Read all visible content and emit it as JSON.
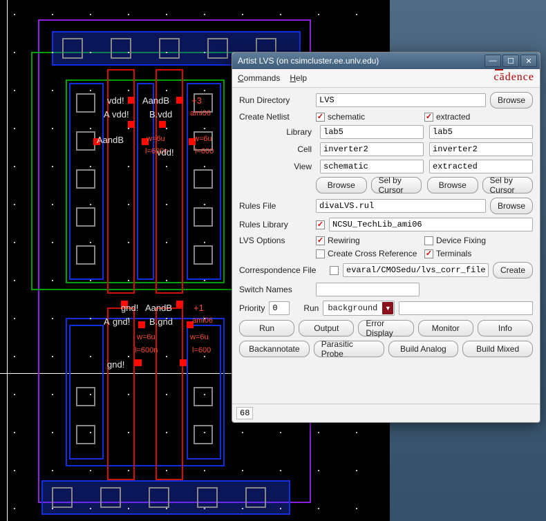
{
  "window": {
    "title": "Artist LVS (on csimcluster.ee.unlv.edu)",
    "menus": {
      "commands": "Commands",
      "help": "Help"
    },
    "brand": "cādence"
  },
  "form": {
    "run_directory_label": "Run Directory",
    "run_directory": "LVS",
    "browse": "Browse",
    "create_netlist_label": "Create Netlist",
    "schematic_chk_label": "schematic",
    "extracted_chk_label": "extracted",
    "schematic_checked": true,
    "extracted_checked": true,
    "library_label": "Library",
    "cell_label": "Cell",
    "view_label": "View",
    "left": {
      "library": "lab5",
      "cell": "inverter2",
      "view": "schematic"
    },
    "right": {
      "library": "lab5",
      "cell": "inverter2",
      "view": "extracted"
    },
    "sel_by_cursor": "Sel by Cursor",
    "rules_file_label": "Rules File",
    "rules_file": "divaLVS.rul",
    "rules_library_label": "Rules Library",
    "rules_library_checked": true,
    "rules_library": "NCSU_TechLib_ami06",
    "lvs_options_label": "LVS Options",
    "rewiring_label": "Rewiring",
    "rewiring_checked": true,
    "device_fixing_label": "Device Fixing",
    "device_fixing_checked": false,
    "create_xref_label": "Create Cross Reference",
    "create_xref_checked": false,
    "terminals_label": "Terminals",
    "terminals_checked": true,
    "corr_file_label": "Correspondence File",
    "corr_file_checked": false,
    "corr_file": "evaral/CMOSedu/lvs_corr_file",
    "create_btn": "Create",
    "switch_names_label": "Switch Names",
    "switch_names": "",
    "priority_label": "Priority",
    "priority": "0",
    "run_label": "Run",
    "run_mode": "background",
    "buttons1": {
      "run": "Run",
      "output": "Output",
      "error": "Error Display",
      "monitor": "Monitor",
      "info": "Info"
    },
    "buttons2": {
      "backannotate": "Backannotate",
      "parasitic": "Parasitic Probe",
      "build_analog": "Build Analog",
      "build_mixed": "Build Mixed"
    }
  },
  "status": "68",
  "layout_labels": {
    "vdd": "vdd!",
    "aandb1": "AandB",
    "plus3": "+3",
    "a": "A",
    "bvdd": "B.vdd",
    "ami06a": "ami06",
    "aandb2": "AandB",
    "w6u_a": "w=6u",
    "w6u_b": "w=6u",
    "l600a": "l=600n",
    "l600b": "l=600",
    "gnd": "gnd!",
    "aandb3": "AandB",
    "plus1": "+1",
    "a2": "A",
    "bgnd": "B.gnd",
    "ami06b": "ami06",
    "w6u_c": "w=6u",
    "w6u_d": "w=6u",
    "l600c": "l=600n",
    "l600d": "l=600",
    "gnd2": "gnd!",
    "vdd_mid": "vdd!"
  },
  "layout_style": {
    "border_blue": "#1030e0",
    "border_red": "#d01000",
    "border_green": "#00a000",
    "pad_blue": "#2040ff",
    "cross_grey": "#888888"
  }
}
